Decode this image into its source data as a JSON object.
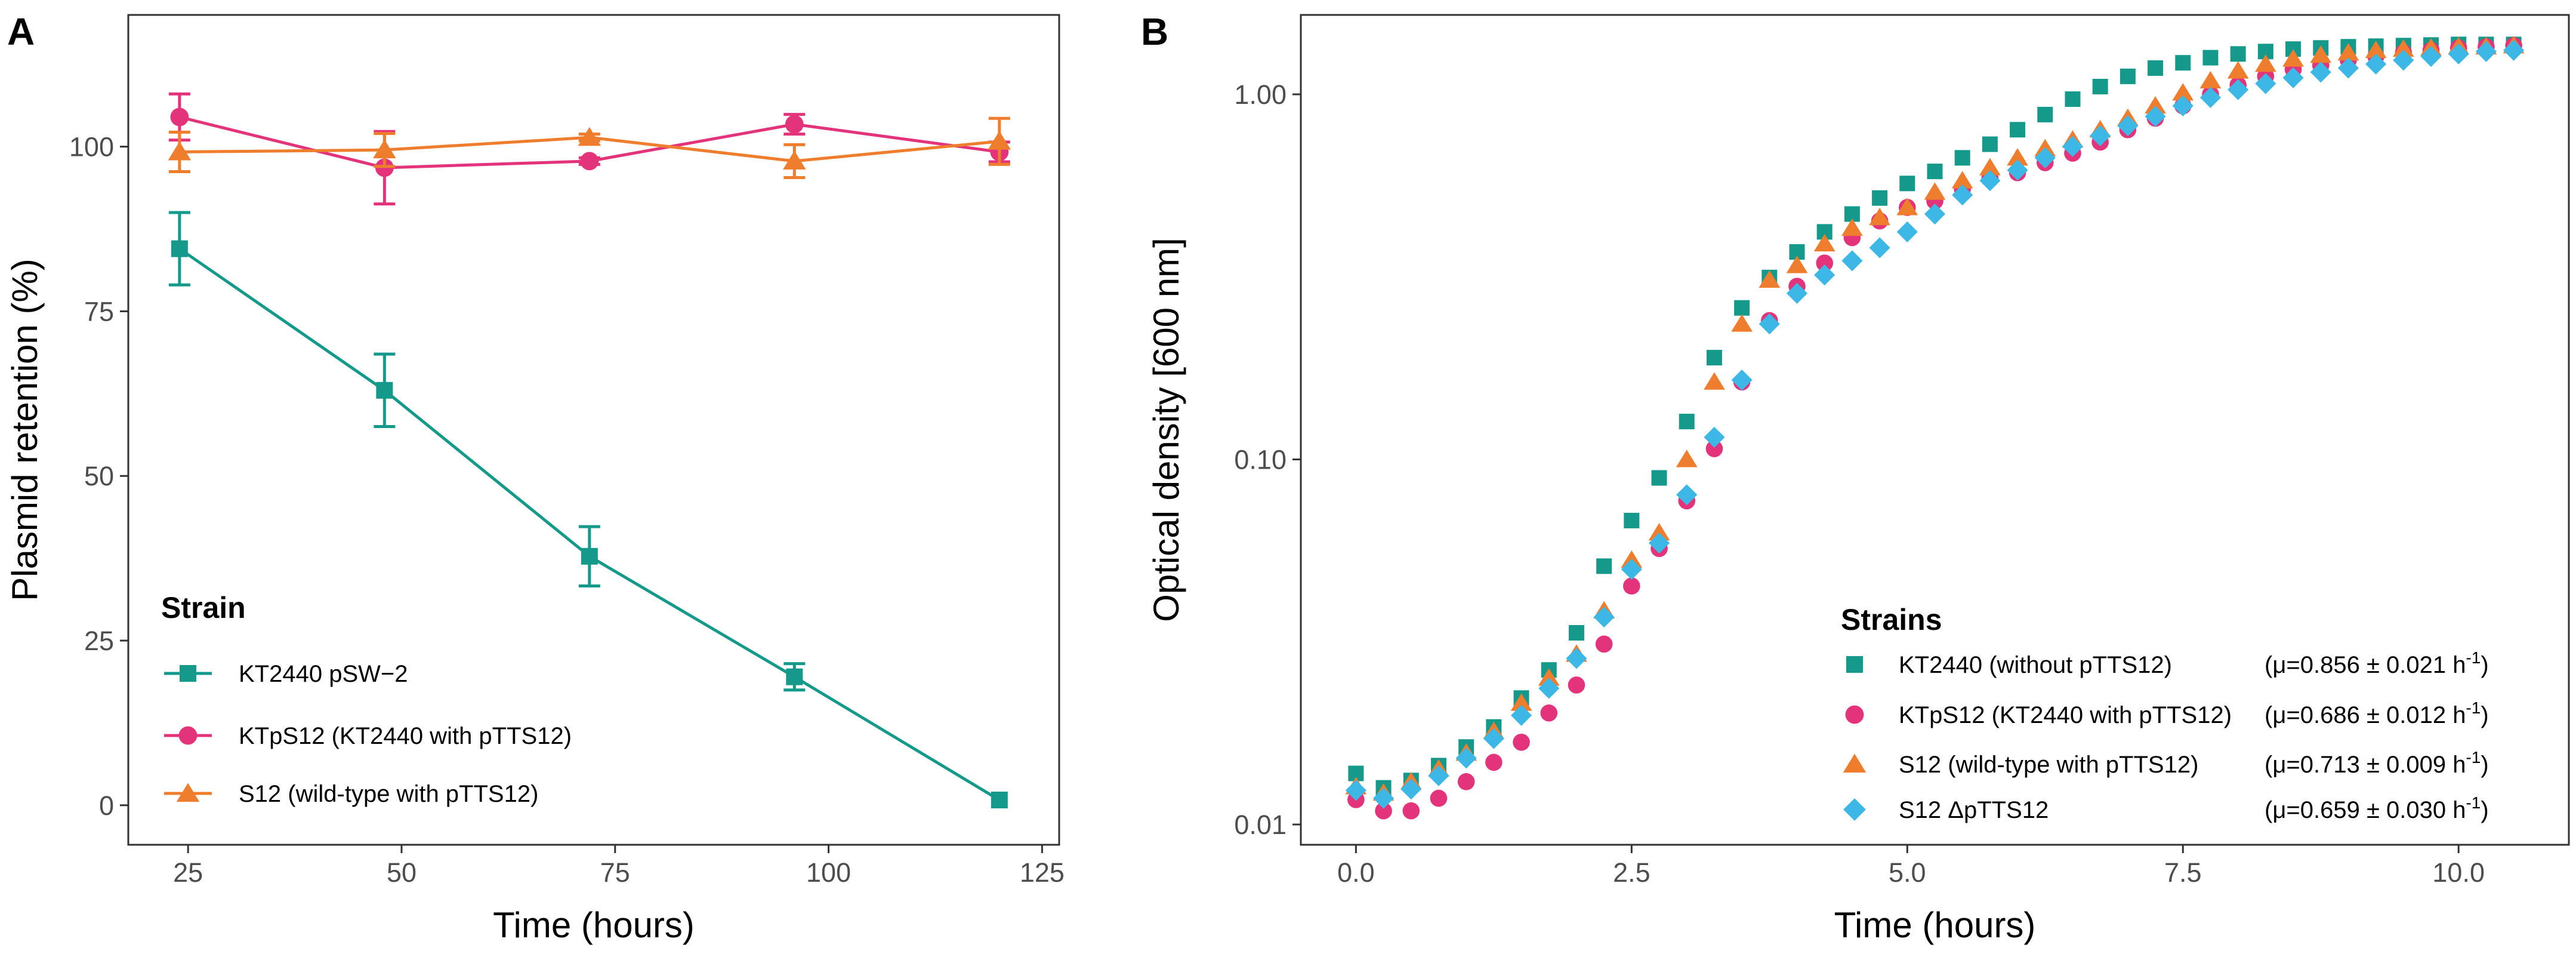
{
  "chart_data": [
    {
      "panel": "A",
      "type": "line",
      "xlabel": "Time (hours)",
      "ylabel": "Plasmid retention (%)",
      "xlim": [
        18,
        127
      ],
      "ylim": [
        -6,
        120
      ],
      "xticks": [
        25,
        50,
        75,
        100,
        125
      ],
      "yticks": [
        0,
        25,
        50,
        75,
        100
      ],
      "x": [
        24,
        48,
        72,
        96,
        120
      ],
      "legend_title": "Strain",
      "legend_position": "bottom-left",
      "series": [
        {
          "name": "KT2440 pSW−2",
          "color": "#15998a",
          "marker": "square",
          "values": [
            84.5,
            63,
            37.8,
            19.5,
            0.8
          ],
          "errors": [
            5.5,
            5.5,
            4.5,
            2,
            0
          ]
        },
        {
          "name": "KTpS12 (KT2440 with pTTS12)",
          "color": "#e3347b",
          "marker": "circle",
          "values": [
            104.5,
            96.8,
            97.8,
            103.4,
            99.2
          ],
          "errors": [
            3.5,
            5.5,
            0.5,
            1.5,
            1.5
          ]
        },
        {
          "name": "S12 (wild-type with pTTS12)",
          "color": "#ef7d2e",
          "marker": "triangle",
          "values": [
            99.2,
            99.5,
            101.4,
            97.8,
            100.8
          ],
          "errors": [
            3,
            2.5,
            0.5,
            2.5,
            3.5
          ]
        }
      ]
    },
    {
      "panel": "B",
      "type": "scatter",
      "xlabel": "Time (hours)",
      "ylabel": "Optical density [600 nm]",
      "yscale": "log",
      "xlim": [
        -0.5,
        11
      ],
      "ylim": [
        0.0088,
        1.65
      ],
      "xticks": [
        0,
        2.5,
        5,
        7.5,
        10
      ],
      "xtick_labels": [
        "0.0",
        "2.5",
        "5.0",
        "7.5",
        "10.0"
      ],
      "yticks": [
        0.01,
        0.1,
        1
      ],
      "ytick_labels": [
        "0.01",
        "0.10",
        "1.00"
      ],
      "x_step": 0.25,
      "legend_title": "Strains",
      "legend_position": "bottom-right",
      "series": [
        {
          "name": "KT2440 (without pTTS12)",
          "rate": "(μ=0.856 ± 0.021 h",
          "color": "#15998a",
          "marker": "square",
          "values": [
            0.0138,
            0.0126,
            0.0132,
            0.0145,
            0.0163,
            0.0185,
            0.0222,
            0.0265,
            0.0335,
            0.051,
            0.068,
            0.089,
            0.127,
            0.19,
            0.26,
            0.315,
            0.37,
            0.42,
            0.47,
            0.52,
            0.57,
            0.615,
            0.67,
            0.73,
            0.8,
            0.88,
            0.97,
            1.05,
            1.12,
            1.18,
            1.22,
            1.26,
            1.29,
            1.31,
            1.33,
            1.34,
            1.35,
            1.355,
            1.36,
            1.365,
            1.37,
            1.37,
            1.37
          ]
        },
        {
          "name": "KTpS12 (KT2440 with pTTS12)",
          "rate": "(μ=0.686 ± 0.012 h",
          "color": "#e3347b",
          "marker": "circle",
          "values": [
            0.0117,
            0.0109,
            0.0109,
            0.0118,
            0.0131,
            0.0148,
            0.0168,
            0.0202,
            0.0241,
            0.0312,
            0.045,
            0.057,
            0.077,
            0.107,
            0.163,
            0.24,
            0.298,
            0.345,
            0.405,
            0.45,
            0.49,
            0.51,
            0.55,
            0.59,
            0.61,
            0.65,
            0.69,
            0.74,
            0.8,
            0.86,
            0.93,
            1,
            1.06,
            1.12,
            1.17,
            1.2,
            1.24,
            1.27,
            1.3,
            1.32,
            1.34,
            1.35,
            1.36
          ]
        },
        {
          "name": "S12 (wild-type with pTTS12)",
          "rate": "(μ=0.713 ± 0.009 h",
          "color": "#ef7d2e",
          "marker": "triangle",
          "values": [
            0.0127,
            0.0122,
            0.0131,
            0.0142,
            0.0157,
            0.018,
            0.0215,
            0.0252,
            0.0293,
            0.0385,
            0.053,
            0.063,
            0.1,
            0.163,
            0.235,
            0.31,
            0.34,
            0.39,
            0.43,
            0.46,
            0.49,
            0.54,
            0.58,
            0.63,
            0.67,
            0.71,
            0.75,
            0.8,
            0.86,
            0.93,
            1.01,
            1.09,
            1.16,
            1.21,
            1.25,
            1.28,
            1.3,
            1.32,
            1.33,
            1.34,
            1.35,
            1.35,
            1.36
          ]
        },
        {
          "name": "S12 ΔpTTS12",
          "rate": "(μ=0.659 ± 0.030 h",
          "color": "#3cb7e6",
          "marker": "diamond",
          "values": [
            0.0124,
            0.0118,
            0.0125,
            0.0136,
            0.0152,
            0.0172,
            0.0199,
            0.0236,
            0.0285,
            0.037,
            0.05,
            0.059,
            0.08,
            0.115,
            0.165,
            0.235,
            0.285,
            0.32,
            0.35,
            0.38,
            0.42,
            0.47,
            0.53,
            0.58,
            0.62,
            0.67,
            0.72,
            0.77,
            0.82,
            0.87,
            0.93,
            0.98,
            1.03,
            1.07,
            1.11,
            1.15,
            1.18,
            1.21,
            1.24,
            1.27,
            1.29,
            1.31,
            1.32
          ]
        }
      ]
    }
  ],
  "labels": {
    "panel_a": "A",
    "panel_b": "B",
    "rate_superscript": "-1",
    "rate_close": ")"
  }
}
